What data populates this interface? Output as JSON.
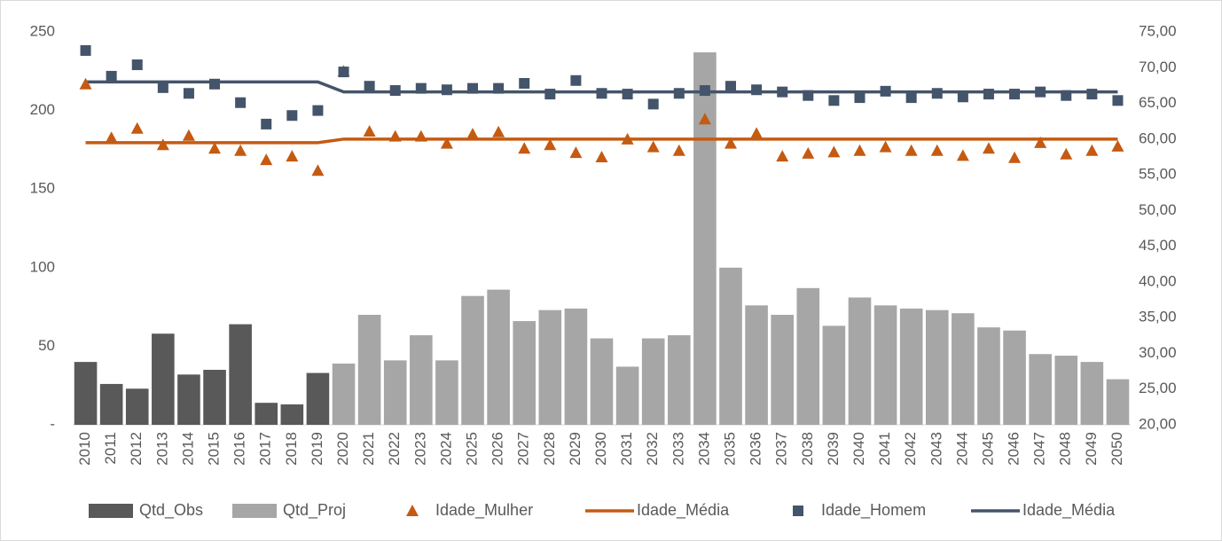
{
  "chart_data": {
    "type": "combo",
    "categories": [
      "2010",
      "2011",
      "2012",
      "2013",
      "2014",
      "2015",
      "2016",
      "2017",
      "2018",
      "2019",
      "2020",
      "2021",
      "2022",
      "2023",
      "2024",
      "2025",
      "2026",
      "2027",
      "2028",
      "2029",
      "2030",
      "2031",
      "2032",
      "2033",
      "2034",
      "2035",
      "2036",
      "2037",
      "2038",
      "2039",
      "2040",
      "2041",
      "2042",
      "2043",
      "2044",
      "2045",
      "2046",
      "2047",
      "2048",
      "2049",
      "2050"
    ],
    "ylim": [
      0,
      250
    ],
    "yticks": [
      {
        "value": 0,
        "label": "-"
      },
      50,
      100,
      150,
      200,
      250
    ],
    "y2lim": [
      20,
      75
    ],
    "y2ticks": [
      {
        "value": 20,
        "label": "20,00"
      },
      {
        "value": 25,
        "label": "25,00"
      },
      {
        "value": 30,
        "label": "30,00"
      },
      {
        "value": 35,
        "label": "35,00"
      },
      {
        "value": 40,
        "label": "40,00"
      },
      {
        "value": 45,
        "label": "45,00"
      },
      {
        "value": 50,
        "label": "50,00"
      },
      {
        "value": 55,
        "label": "55,00"
      },
      {
        "value": 60,
        "label": "60,00"
      },
      {
        "value": 65,
        "label": "65,00"
      },
      {
        "value": 70,
        "label": "70,00"
      },
      {
        "value": 75,
        "label": "75,00"
      }
    ],
    "legend": "bottom",
    "series": [
      {
        "name": "Qtd_Obs",
        "type": "bar",
        "color": "#595959",
        "values": [
          40,
          26,
          23,
          58,
          32,
          35,
          64,
          14,
          13,
          33,
          null,
          null,
          null,
          null,
          null,
          null,
          null,
          null,
          null,
          null,
          null,
          null,
          null,
          null,
          null,
          null,
          null,
          null,
          null,
          null,
          null,
          null,
          null,
          null,
          null,
          null,
          null,
          null,
          null,
          null,
          null
        ]
      },
      {
        "name": "Qtd_Proj",
        "type": "bar",
        "color": "#a6a6a6",
        "values": [
          null,
          null,
          null,
          null,
          null,
          null,
          null,
          null,
          null,
          null,
          39,
          70,
          41,
          57,
          41,
          82,
          86,
          66,
          73,
          74,
          55,
          37,
          55,
          57,
          237,
          100,
          76,
          70,
          87,
          63,
          81,
          76,
          74,
          73,
          71,
          62,
          60,
          45,
          44,
          40,
          29
        ]
      },
      {
        "name": "Idade_Mulher",
        "type": "scatter",
        "marker": "triangle",
        "axis": "y2",
        "color": "#c55a11",
        "values": [
          67.7,
          60.2,
          61.5,
          59.2,
          60.5,
          58.7,
          58.4,
          57.1,
          57.6,
          55.6,
          69.5,
          61.1,
          60.4,
          60.4,
          59.4,
          60.7,
          61.0,
          58.7,
          59.2,
          58.1,
          57.5,
          60.0,
          58.9,
          58.4,
          62.8,
          59.4,
          60.8,
          57.6,
          58.0,
          58.2,
          58.4,
          58.9,
          58.4,
          58.4,
          57.7,
          58.7,
          57.4,
          59.5,
          57.9,
          58.4,
          59.0
        ]
      },
      {
        "name": "Idade_Média",
        "type": "line",
        "axis": "y2",
        "color": "#c55a11",
        "values": [
          59.5,
          59.5,
          59.5,
          59.5,
          59.5,
          59.5,
          59.5,
          59.5,
          59.5,
          59.5,
          60.0,
          60.0,
          60.0,
          60.0,
          60.0,
          60.0,
          60.0,
          60.0,
          60.0,
          60.0,
          60.0,
          60.0,
          60.0,
          60.0,
          60.0,
          60.0,
          60.0,
          60.0,
          60.0,
          60.0,
          60.0,
          60.0,
          60.0,
          60.0,
          60.0,
          60.0,
          60.0,
          60.0,
          60.0,
          60.0,
          60.0
        ]
      },
      {
        "name": "Idade_Homem",
        "type": "scatter",
        "marker": "square",
        "axis": "y2",
        "color": "#44546a",
        "values": [
          72.4,
          68.8,
          70.4,
          67.2,
          66.4,
          67.7,
          65.1,
          62.1,
          63.3,
          64.0,
          69.4,
          67.4,
          66.8,
          67.1,
          66.9,
          67.1,
          67.1,
          67.8,
          66.3,
          68.2,
          66.4,
          66.3,
          64.9,
          66.4,
          66.8,
          67.4,
          66.9,
          66.6,
          66.1,
          65.4,
          65.8,
          66.7,
          65.8,
          66.4,
          65.9,
          66.3,
          66.3,
          66.6,
          66.1,
          66.3,
          65.4
        ]
      },
      {
        "name": "Idade_Média",
        "type": "line",
        "axis": "y2",
        "color": "#44546a",
        "values": [
          68.0,
          68.0,
          68.0,
          68.0,
          68.0,
          68.0,
          68.0,
          68.0,
          68.0,
          68.0,
          66.6,
          66.6,
          66.6,
          66.6,
          66.6,
          66.6,
          66.6,
          66.6,
          66.6,
          66.6,
          66.6,
          66.6,
          66.6,
          66.6,
          66.6,
          66.6,
          66.6,
          66.6,
          66.6,
          66.6,
          66.6,
          66.6,
          66.6,
          66.6,
          66.6,
          66.6,
          66.6,
          66.6,
          66.6,
          66.6,
          66.6
        ]
      }
    ]
  }
}
